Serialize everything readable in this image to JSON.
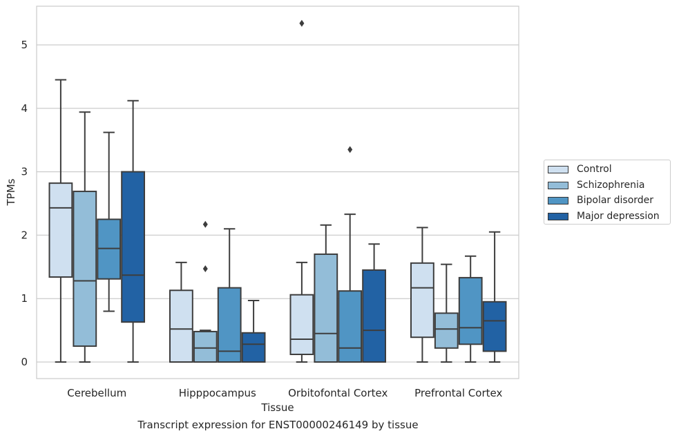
{
  "chart_data": {
    "type": "box",
    "ylabel": "TPMs",
    "xlabel": "Tissue",
    "ylim": [
      -0.26,
      5.6
    ],
    "yticks": [
      "0",
      "1",
      "2",
      "3",
      "4",
      "5"
    ],
    "grid": "horizontal",
    "legend_position": "right",
    "categories": [
      "Cerebellum",
      "Hipppocampus",
      "Orbitofontal Cortex",
      "Prefrontal Cortex"
    ],
    "series": [
      {
        "name": "Control",
        "color": "#cfe0f0",
        "boxes": [
          {
            "min": 0.0,
            "q1": 1.34,
            "median": 2.43,
            "q3": 2.82,
            "max": 4.45,
            "outliers": []
          },
          {
            "min": 0.0,
            "q1": 0.0,
            "median": 0.52,
            "q3": 1.13,
            "max": 1.57,
            "outliers": []
          },
          {
            "min": 0.0,
            "q1": 0.12,
            "median": 0.36,
            "q3": 1.06,
            "max": 1.57,
            "outliers": [
              5.34
            ]
          },
          {
            "min": 0.0,
            "q1": 0.39,
            "median": 1.17,
            "q3": 1.56,
            "max": 2.12,
            "outliers": []
          }
        ]
      },
      {
        "name": "Schizophrenia",
        "color": "#93bdd8",
        "boxes": [
          {
            "min": 0.0,
            "q1": 0.25,
            "median": 1.28,
            "q3": 2.69,
            "max": 3.94,
            "outliers": []
          },
          {
            "min": 0.0,
            "q1": 0.0,
            "median": 0.22,
            "q3": 0.48,
            "max": 0.5,
            "outliers": [
              1.47,
              2.17
            ]
          },
          {
            "min": 0.0,
            "q1": 0.0,
            "median": 0.45,
            "q3": 1.7,
            "max": 2.16,
            "outliers": []
          },
          {
            "min": 0.0,
            "q1": 0.22,
            "median": 0.52,
            "q3": 0.77,
            "max": 1.54,
            "outliers": []
          }
        ]
      },
      {
        "name": "Bipolar disorder",
        "color": "#5095c4",
        "boxes": [
          {
            "min": 0.8,
            "q1": 1.31,
            "median": 1.79,
            "q3": 2.25,
            "max": 3.62,
            "outliers": []
          },
          {
            "min": 0.0,
            "q1": 0.0,
            "median": 0.17,
            "q3": 1.17,
            "max": 2.1,
            "outliers": []
          },
          {
            "min": 0.0,
            "q1": 0.0,
            "median": 0.22,
            "q3": 1.12,
            "max": 2.33,
            "outliers": [
              3.35
            ]
          },
          {
            "min": 0.0,
            "q1": 0.28,
            "median": 0.54,
            "q3": 1.33,
            "max": 1.67,
            "outliers": []
          }
        ]
      },
      {
        "name": "Major depression",
        "color": "#2262a4",
        "boxes": [
          {
            "min": 0.0,
            "q1": 0.63,
            "median": 1.37,
            "q3": 3.0,
            "max": 4.12,
            "outliers": []
          },
          {
            "min": 0.0,
            "q1": 0.0,
            "median": 0.28,
            "q3": 0.46,
            "max": 0.97,
            "outliers": []
          },
          {
            "min": 0.0,
            "q1": 0.0,
            "median": 0.5,
            "q3": 1.45,
            "max": 1.86,
            "outliers": []
          },
          {
            "min": 0.0,
            "q1": 0.17,
            "median": 0.65,
            "q3": 0.95,
            "max": 2.05,
            "outliers": []
          }
        ]
      }
    ]
  },
  "caption": "Transcript expression for ENST00000246149 by tissue"
}
